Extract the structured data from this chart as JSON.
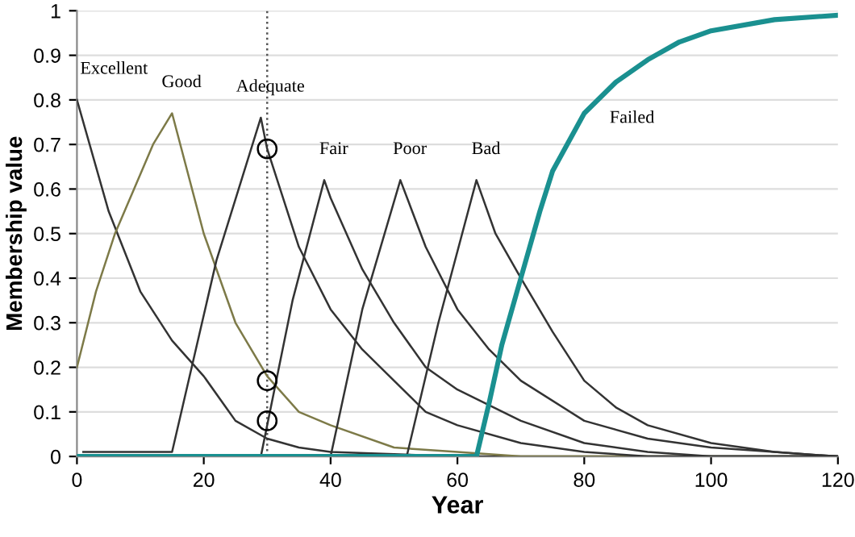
{
  "chart_data": {
    "type": "line",
    "xlabel": "Year",
    "ylabel": "Membership value",
    "xlim": [
      0,
      120
    ],
    "ylim": [
      0,
      1
    ],
    "xticks": [
      0,
      20,
      40,
      60,
      80,
      100,
      120
    ],
    "yticks": [
      0,
      0.1,
      0.2,
      0.3,
      0.4,
      0.5,
      0.6,
      0.7,
      0.8,
      0.9,
      1
    ],
    "grid": "y",
    "legend": false,
    "series": [
      {
        "name": "Excellent",
        "color": "#333333",
        "x": [
          0,
          5,
          10,
          15,
          20,
          25,
          30,
          35,
          40,
          50,
          60,
          120
        ],
        "values": [
          0.8,
          0.55,
          0.37,
          0.26,
          0.18,
          0.08,
          0.04,
          0.02,
          0.01,
          0.005,
          0,
          0
        ]
      },
      {
        "name": "Good",
        "color": "#7d7a48",
        "x": [
          0,
          3,
          6,
          9,
          12,
          15,
          20,
          25,
          30,
          35,
          40,
          50,
          60,
          70,
          120
        ],
        "values": [
          0.2,
          0.37,
          0.5,
          0.6,
          0.7,
          0.77,
          0.5,
          0.3,
          0.18,
          0.1,
          0.07,
          0.02,
          0.01,
          0,
          0
        ]
      },
      {
        "name": "Adequate",
        "color": "#333333",
        "x": [
          1,
          15,
          22,
          29,
          30,
          35,
          40,
          45,
          50,
          55,
          60,
          70,
          80,
          90,
          120
        ],
        "values": [
          0.01,
          0.01,
          0.44,
          0.76,
          0.69,
          0.47,
          0.33,
          0.24,
          0.17,
          0.1,
          0.07,
          0.03,
          0.01,
          0,
          0
        ]
      },
      {
        "name": "Fair",
        "color": "#333333",
        "x": [
          29,
          34,
          39,
          40,
          45,
          50,
          55,
          60,
          70,
          80,
          90,
          100,
          120
        ],
        "values": [
          0,
          0.35,
          0.62,
          0.58,
          0.42,
          0.3,
          0.2,
          0.15,
          0.08,
          0.03,
          0.01,
          0,
          0
        ]
      },
      {
        "name": "Poor",
        "color": "#333333",
        "x": [
          40,
          45,
          51,
          55,
          60,
          65,
          70,
          80,
          90,
          100,
          110,
          120
        ],
        "values": [
          0,
          0.33,
          0.62,
          0.47,
          0.33,
          0.24,
          0.17,
          0.08,
          0.04,
          0.02,
          0.01,
          0
        ]
      },
      {
        "name": "Bad",
        "color": "#333333",
        "x": [
          52,
          57,
          63,
          66,
          70,
          75,
          80,
          85,
          90,
          100,
          110,
          120
        ],
        "values": [
          0,
          0.3,
          0.62,
          0.5,
          0.4,
          0.28,
          0.17,
          0.11,
          0.07,
          0.03,
          0.01,
          0
        ]
      },
      {
        "name": "Failed",
        "color": "#1a9090",
        "x": [
          0,
          63,
          65,
          67,
          70,
          73,
          75,
          80,
          85,
          90,
          95,
          100,
          110,
          120
        ],
        "values": [
          0,
          0,
          0.12,
          0.25,
          0.4,
          0.55,
          0.64,
          0.77,
          0.84,
          0.89,
          0.93,
          0.955,
          0.98,
          0.99
        ]
      },
      {
        "type": "scatter",
        "marker": "circle",
        "color": "#000000",
        "x": [
          30,
          30,
          30
        ],
        "values": [
          0.69,
          0.17,
          0.08
        ]
      }
    ],
    "ref_lines": [
      {
        "axis": "x",
        "value": 30,
        "color": "#555555",
        "line_style": "dotted"
      }
    ]
  }
}
